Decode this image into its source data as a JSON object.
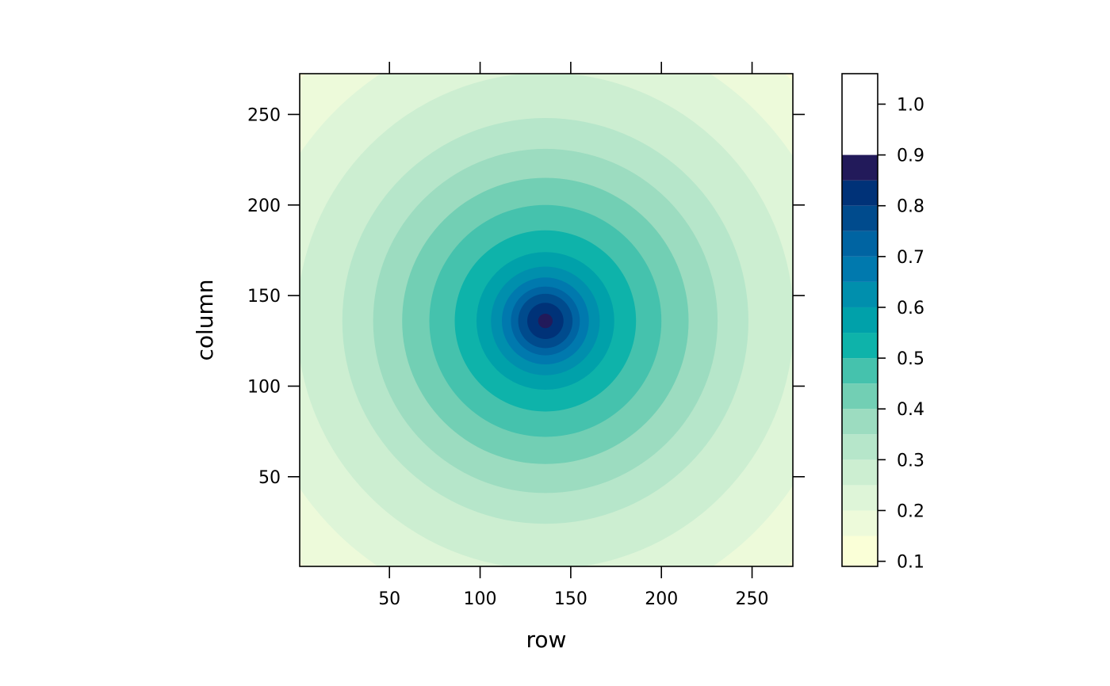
{
  "chart_data": {
    "type": "heatmap",
    "description_kind": "levelplot",
    "title": "",
    "xlabel": "row",
    "ylabel": "column",
    "x_range": [
      1,
      272
    ],
    "y_range": [
      1,
      272
    ],
    "x_ticks": [
      50,
      100,
      150,
      200,
      250
    ],
    "y_ticks": [
      50,
      100,
      150,
      200,
      250
    ],
    "peak": {
      "x": 136,
      "y": 136,
      "value": 1.0
    },
    "surface": "radially symmetric, decreasing with distance from center",
    "colorkey": {
      "position": "right",
      "range": [
        0.09,
        1.06
      ],
      "ticks": [
        0.1,
        0.2,
        0.3,
        0.4,
        0.5,
        0.6,
        0.7,
        0.8,
        0.9,
        1.0
      ],
      "tick_labels": [
        "0.1",
        "0.2",
        "0.3",
        "0.4",
        "0.5",
        "0.6",
        "0.7",
        "0.8",
        "0.9",
        "1.0"
      ],
      "breaks": [
        0.09,
        0.15,
        0.2,
        0.25,
        0.3,
        0.35,
        0.4,
        0.45,
        0.5,
        0.55,
        0.6,
        0.65,
        0.7,
        0.75,
        0.8,
        0.85,
        0.9,
        0.95,
        1.0,
        1.06
      ],
      "colors": [
        "#FAFFD7",
        "#EDFADA",
        "#DEF5D8",
        "#CCEED1",
        "#B6E6CA",
        "#9CDCC0",
        "#72CFB4",
        "#45C2AD",
        "#0EB3AA",
        "#00A1AA",
        "#008FAD",
        "#0079AE",
        "#0064A2",
        "#004B8D",
        "#003278",
        "#221A5A"
      ]
    },
    "grid": false,
    "legend": "none"
  }
}
